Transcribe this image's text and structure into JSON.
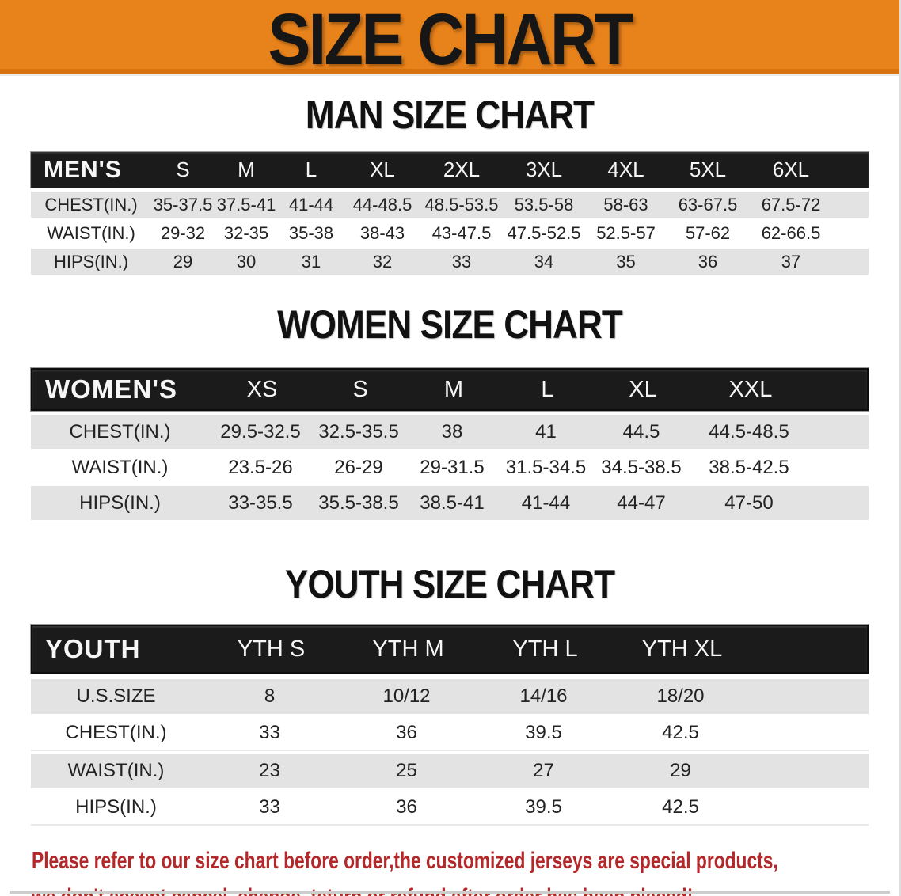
{
  "banner": {
    "title": "SIZE CHART"
  },
  "colors": {
    "banner-orange": "#E8821B",
    "banner-edge": "#D7720E",
    "bar-black": "#1B1B1B",
    "row-gray": "#E3E3E3",
    "text-dark": "#222222",
    "footer-red": "#B3282A"
  },
  "sections": [
    {
      "id": "men",
      "heading": "MAN SIZE CHART",
      "header_label": "MEN'S",
      "columns": [
        "S",
        "M",
        "L",
        "XL",
        "2XL",
        "3XL",
        "4XL",
        "5XL",
        "6XL"
      ],
      "rows": [
        {
          "label": "CHEST(IN.)",
          "values": [
            "35-37.5",
            "37.5-41",
            "41-44",
            "44-48.5",
            "48.5-53.5",
            "53.5-58",
            "58-63",
            "63-67.5",
            "67.5-72"
          ]
        },
        {
          "label": "WAIST(IN.)",
          "values": [
            "29-32",
            "32-35",
            "35-38",
            "38-43",
            "43-47.5",
            "47.5-52.5",
            "52.5-57",
            "57-62",
            "62-66.5"
          ]
        },
        {
          "label": "HIPS(IN.)",
          "values": [
            "29",
            "30",
            "31",
            "32",
            "33",
            "34",
            "35",
            "36",
            "37"
          ]
        }
      ]
    },
    {
      "id": "women",
      "heading": "WOMEN SIZE CHART",
      "header_label": "WOMEN'S",
      "columns": [
        "XS",
        "S",
        "M",
        "L",
        "XL",
        "XXL"
      ],
      "rows": [
        {
          "label": "CHEST(IN.)",
          "values": [
            "29.5-32.5",
            "32.5-35.5",
            "38",
            "41",
            "44.5",
            "44.5-48.5"
          ]
        },
        {
          "label": "WAIST(IN.)",
          "values": [
            "23.5-26",
            "26-29",
            "29-31.5",
            "31.5-34.5",
            "34.5-38.5",
            "38.5-42.5"
          ]
        },
        {
          "label": "HIPS(IN.)",
          "values": [
            "33-35.5",
            "35.5-38.5",
            "38.5-41",
            "41-44",
            "44-47",
            "47-50"
          ]
        }
      ]
    },
    {
      "id": "youth",
      "heading": "YOUTH SIZE CHART",
      "header_label": "YOUTH",
      "columns": [
        "YTH S",
        "YTH M",
        "YTH L",
        "YTH XL"
      ],
      "rows": [
        {
          "label": "U.S.SIZE",
          "values": [
            "8",
            "10/12",
            "14/16",
            "18/20"
          ]
        },
        {
          "label": "CHEST(IN.)",
          "values": [
            "33",
            "36",
            "39.5",
            "42.5"
          ]
        },
        {
          "label": "WAIST(IN.)",
          "values": [
            "23",
            "25",
            "27",
            "29"
          ]
        },
        {
          "label": "HIPS(IN.)",
          "values": [
            "33",
            "36",
            "39.5",
            "42.5"
          ]
        }
      ]
    }
  ],
  "footer": {
    "line1": "Please refer to our size chart before order,the customized jerseys are special products,",
    "line2": "we don't accept cancel, change, teturn or refund after order has been placed!"
  }
}
